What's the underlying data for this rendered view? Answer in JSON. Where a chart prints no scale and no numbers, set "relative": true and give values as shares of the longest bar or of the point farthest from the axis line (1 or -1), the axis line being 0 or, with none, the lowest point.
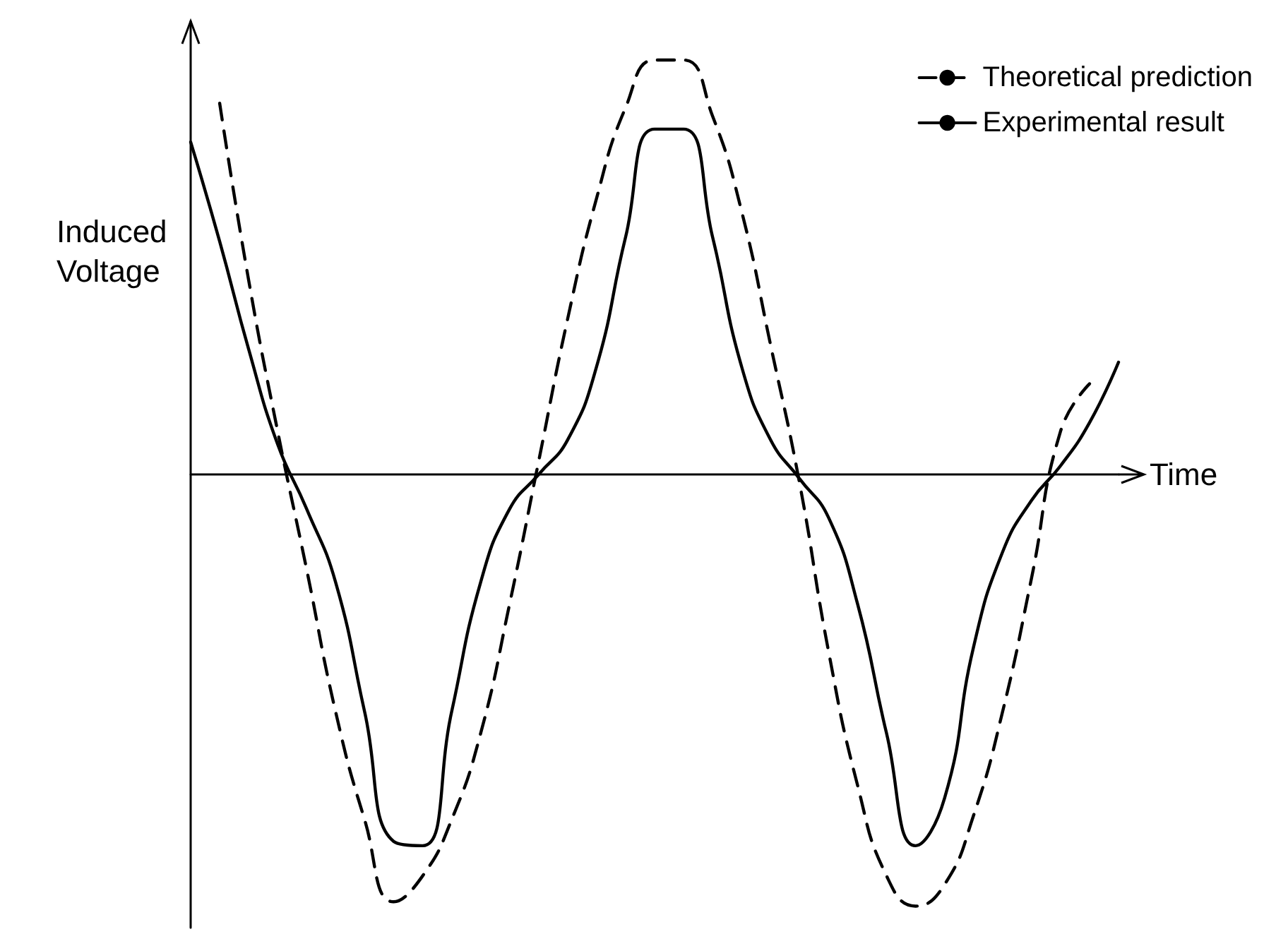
{
  "chart_data": {
    "type": "line",
    "relative": true,
    "xlabel": "Time",
    "ylabel": "Induced Voltage",
    "categories": [
      null,
      null,
      null,
      null,
      null,
      null,
      null,
      null,
      null,
      null,
      null,
      null,
      null,
      null,
      null,
      null,
      null,
      null,
      null,
      null,
      null,
      null,
      null,
      null,
      null,
      null,
      null,
      null,
      null,
      null,
      null,
      null,
      null
    ],
    "series": [
      {
        "name": "Theoretical prediction",
        "color": "#000000",
        "line_style": "dashed",
        "values": [
          null,
          0.86,
          0.45,
          0.1,
          -0.22,
          -0.55,
          -0.8,
          -0.99,
          -0.93,
          -0.8,
          -0.6,
          -0.3,
          0.03,
          0.36,
          0.64,
          0.85,
          0.96,
          0.96,
          0.83,
          0.61,
          0.3,
          -0.02,
          -0.41,
          -0.72,
          -0.93,
          -1.0,
          -0.95,
          -0.79,
          -0.55,
          -0.24,
          0.1,
          0.21,
          null
        ]
      },
      {
        "name": "Experimental result",
        "color": "#000000",
        "line_style": "solid",
        "values": [
          0.77,
          0.54,
          0.29,
          0.07,
          -0.08,
          -0.25,
          -0.55,
          -0.85,
          -0.86,
          -0.55,
          -0.25,
          -0.08,
          0.0,
          0.08,
          0.25,
          0.55,
          0.8,
          0.8,
          0.55,
          0.25,
          0.08,
          -0.01,
          -0.1,
          -0.3,
          -0.6,
          -0.86,
          -0.75,
          -0.4,
          -0.18,
          -0.06,
          0.02,
          0.12,
          0.26
        ]
      }
    ],
    "marker": "none",
    "grid": false,
    "legend": "top right"
  }
}
